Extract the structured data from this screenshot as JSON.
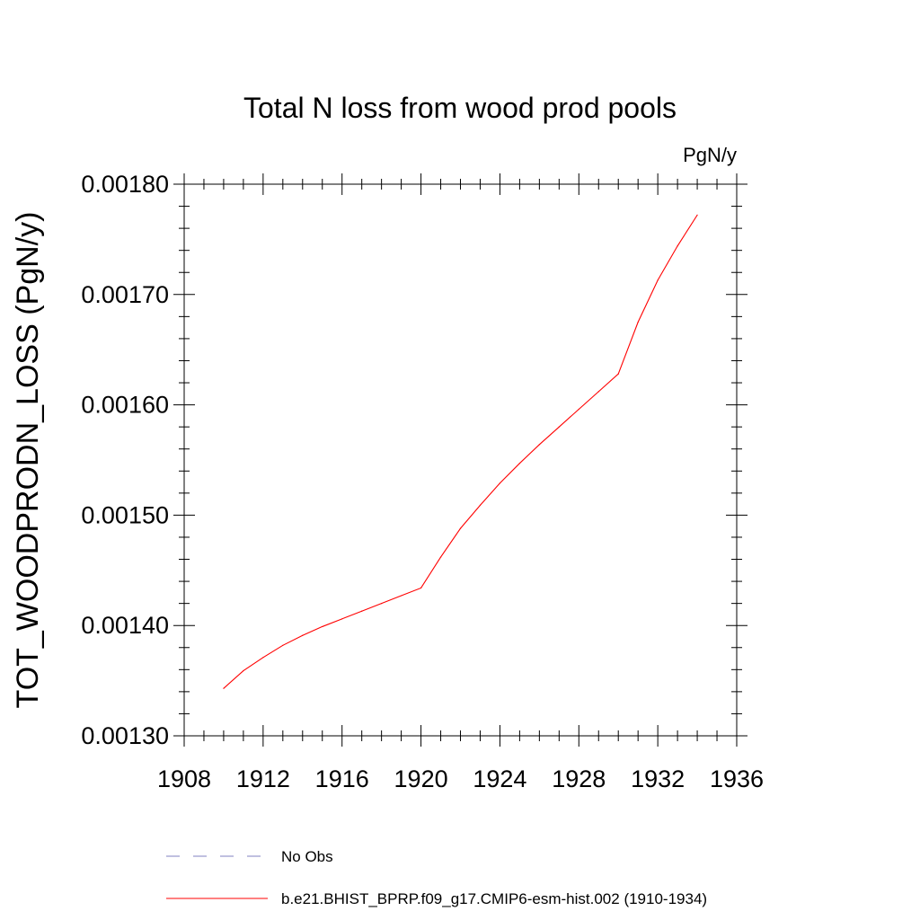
{
  "chart_data": {
    "type": "line",
    "title": "Total N loss from wood prod pools",
    "units_label": "PgN/y",
    "ylabel": "TOT_WOODPRODN_LOSS  (PgN/y)",
    "xlabel": "",
    "xlim": [
      1908,
      1936
    ],
    "ylim": [
      0.0013,
      0.0018
    ],
    "x_major_ticks": [
      1908,
      1912,
      1916,
      1920,
      1924,
      1928,
      1932,
      1936
    ],
    "x_tick_labels": [
      "1908",
      "1912",
      "1916",
      "1920",
      "1924",
      "1928",
      "1932",
      "1936"
    ],
    "y_major_ticks": [
      0.0013,
      0.0014,
      0.0015,
      0.0016,
      0.0017,
      0.0018
    ],
    "y_tick_labels": [
      "0.00130",
      "0.00140",
      "0.00150",
      "0.00160",
      "0.00170",
      "0.00180"
    ],
    "grid": false,
    "series": [
      {
        "name": "b.e21.BHIST_BPRP.f09_g17.CMIP6-esm-hist.002 (1910-1934)",
        "color": "#ff0000",
        "dash": "solid",
        "x": [
          1910,
          1911,
          1912,
          1913,
          1914,
          1915,
          1916,
          1917,
          1918,
          1919,
          1920,
          1921,
          1922,
          1923,
          1924,
          1925,
          1926,
          1927,
          1928,
          1929,
          1930,
          1931,
          1932,
          1933,
          1934
        ],
        "y": [
          0.001343,
          0.001359,
          0.001371,
          0.001382,
          0.001391,
          0.001399,
          0.001406,
          0.001413,
          0.00142,
          0.001427,
          0.001434,
          0.001462,
          0.001488,
          0.001509,
          0.001529,
          0.001547,
          0.001564,
          0.00158,
          0.001596,
          0.001612,
          0.001628,
          0.001675,
          0.001713,
          0.001744,
          0.001772
        ]
      }
    ],
    "legend": {
      "placement": "bottom",
      "entries": [
        {
          "label": "No Obs",
          "color": "#8080c0",
          "dash": "dashed"
        },
        {
          "label": "b.e21.BHIST_BPRP.f09_g17.CMIP6-esm-hist.002 (1910-1934)",
          "color": "#ff0000",
          "dash": "solid"
        }
      ]
    }
  }
}
